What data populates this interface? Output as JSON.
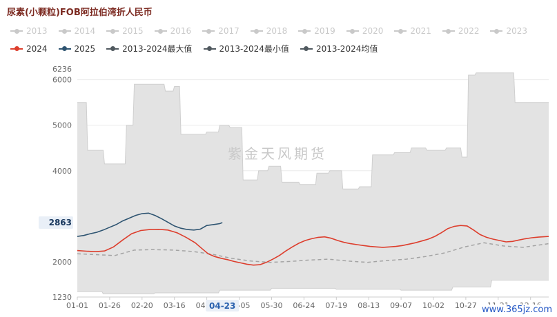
{
  "title": "尿素(小颗粒)FOB阿拉伯湾折人民币",
  "watermark": "紫金天风期货",
  "site_link": "www.365jz.com",
  "legend": {
    "disabled_color": "#c9c9c9",
    "disabled_years": [
      "2013",
      "2014",
      "2015",
      "2016",
      "2017",
      "2018",
      "2019",
      "2020",
      "2021",
      "2022",
      "2023"
    ],
    "active": [
      {
        "label": "2024",
        "color": "#dd3e2d"
      },
      {
        "label": "2025",
        "color": "#2e5471"
      },
      {
        "label": "2013-2024最大值",
        "color": "#50595f"
      },
      {
        "label": "2013-2024最小值",
        "color": "#50595f"
      },
      {
        "label": "2013-2024均值",
        "color": "#50595f"
      }
    ]
  },
  "axis_pointer": {
    "x_label": "04-23",
    "x_day": 113,
    "y_label": "2863",
    "y_value": 2863
  },
  "chart_data": {
    "type": "line",
    "title": "尿素(小颗粒)FOB阿拉伯湾折人民币",
    "legend_position": "top",
    "ylim": [
      1230,
      6236
    ],
    "band_fill": "#e3e3e3",
    "band_edge_color": "#cfcfcf",
    "gridlines": [
      2000,
      3000,
      4000,
      5000,
      6000
    ],
    "y_ticks": [
      {
        "value": 1230,
        "label": "1230"
      },
      {
        "value": 2000,
        "label": "2000"
      },
      {
        "value": 4000,
        "label": "4000"
      },
      {
        "value": 5000,
        "label": "5000"
      },
      {
        "value": 6000,
        "label": "6000"
      },
      {
        "value": 6236,
        "label": "6236"
      }
    ],
    "x_ticks": [
      {
        "day": 1,
        "label": "01-01"
      },
      {
        "day": 26,
        "label": "01-26"
      },
      {
        "day": 51,
        "label": "02-20"
      },
      {
        "day": 76,
        "label": "03-16"
      },
      {
        "day": 101,
        "label": "04-10"
      },
      {
        "day": 126,
        "label": "05-05"
      },
      {
        "day": 151,
        "label": "05-30"
      },
      {
        "day": 176,
        "label": "06-24"
      },
      {
        "day": 201,
        "label": "07-19"
      },
      {
        "day": 226,
        "label": "08-13"
      },
      {
        "day": 251,
        "label": "09-07"
      },
      {
        "day": 276,
        "label": "10-02"
      },
      {
        "day": 301,
        "label": "10-27"
      },
      {
        "day": 326,
        "label": "11-21"
      },
      {
        "day": 351,
        "label": "12-16"
      }
    ],
    "series": [
      {
        "name": "2013-2024最大值",
        "role": "max",
        "color": "#cfcfcf",
        "style": "solid",
        "points": [
          [
            1,
            5500
          ],
          [
            8,
            5500
          ],
          [
            9,
            4450
          ],
          [
            21,
            4450
          ],
          [
            22,
            4150
          ],
          [
            38,
            4150
          ],
          [
            39,
            5000
          ],
          [
            44,
            5000
          ],
          [
            45,
            5900
          ],
          [
            68,
            5900
          ],
          [
            69,
            5750
          ],
          [
            75,
            5750
          ],
          [
            76,
            5850
          ],
          [
            80,
            5850
          ],
          [
            81,
            4800
          ],
          [
            100,
            4800
          ],
          [
            101,
            4850
          ],
          [
            110,
            4850
          ],
          [
            111,
            5000
          ],
          [
            118,
            5000
          ],
          [
            119,
            4950
          ],
          [
            128,
            4950
          ],
          [
            129,
            3800
          ],
          [
            140,
            3800
          ],
          [
            141,
            4000
          ],
          [
            148,
            4000
          ],
          [
            149,
            4100
          ],
          [
            158,
            4100
          ],
          [
            159,
            3750
          ],
          [
            172,
            3750
          ],
          [
            173,
            3700
          ],
          [
            185,
            3700
          ],
          [
            186,
            3950
          ],
          [
            195,
            3950
          ],
          [
            196,
            4000
          ],
          [
            205,
            4000
          ],
          [
            206,
            3600
          ],
          [
            218,
            3600
          ],
          [
            219,
            3650
          ],
          [
            228,
            3650
          ],
          [
            229,
            4350
          ],
          [
            245,
            4350
          ],
          [
            246,
            4400
          ],
          [
            258,
            4400
          ],
          [
            259,
            4500
          ],
          [
            270,
            4500
          ],
          [
            271,
            4450
          ],
          [
            285,
            4450
          ],
          [
            286,
            4500
          ],
          [
            297,
            4500
          ],
          [
            298,
            4300
          ],
          [
            302,
            4300
          ],
          [
            303,
            6100
          ],
          [
            308,
            6100
          ],
          [
            309,
            6150
          ],
          [
            338,
            6150
          ],
          [
            339,
            5500
          ],
          [
            365,
            5500
          ]
        ]
      },
      {
        "name": "2013-2024最小值",
        "role": "min",
        "color": "#cfcfcf",
        "style": "solid",
        "points": [
          [
            1,
            1350
          ],
          [
            20,
            1350
          ],
          [
            21,
            1300
          ],
          [
            60,
            1300
          ],
          [
            61,
            1320
          ],
          [
            110,
            1320
          ],
          [
            111,
            1380
          ],
          [
            150,
            1380
          ],
          [
            151,
            1420
          ],
          [
            200,
            1420
          ],
          [
            201,
            1400
          ],
          [
            250,
            1400
          ],
          [
            251,
            1380
          ],
          [
            290,
            1380
          ],
          [
            291,
            1450
          ],
          [
            320,
            1450
          ],
          [
            321,
            1600
          ],
          [
            365,
            1600
          ]
        ]
      },
      {
        "name": "2013-2024均值",
        "role": "mean",
        "color": "#a3a3a3",
        "style": "dashed",
        "points": [
          [
            1,
            2180
          ],
          [
            15,
            2160
          ],
          [
            30,
            2140
          ],
          [
            45,
            2260
          ],
          [
            60,
            2270
          ],
          [
            75,
            2260
          ],
          [
            90,
            2230
          ],
          [
            105,
            2170
          ],
          [
            120,
            2080
          ],
          [
            135,
            2020
          ],
          [
            150,
            1990
          ],
          [
            165,
            2010
          ],
          [
            180,
            2040
          ],
          [
            195,
            2060
          ],
          [
            210,
            2020
          ],
          [
            225,
            1990
          ],
          [
            240,
            2030
          ],
          [
            255,
            2060
          ],
          [
            270,
            2120
          ],
          [
            285,
            2200
          ],
          [
            300,
            2330
          ],
          [
            315,
            2420
          ],
          [
            330,
            2350
          ],
          [
            345,
            2320
          ],
          [
            365,
            2400
          ]
        ]
      },
      {
        "name": "2024",
        "role": "year",
        "color": "#dd3e2d",
        "style": "solid",
        "points": [
          [
            1,
            2250
          ],
          [
            8,
            2235
          ],
          [
            15,
            2225
          ],
          [
            22,
            2240
          ],
          [
            29,
            2330
          ],
          [
            36,
            2480
          ],
          [
            43,
            2620
          ],
          [
            50,
            2690
          ],
          [
            57,
            2710
          ],
          [
            64,
            2715
          ],
          [
            71,
            2700
          ],
          [
            78,
            2640
          ],
          [
            85,
            2540
          ],
          [
            92,
            2420
          ],
          [
            97,
            2300
          ],
          [
            102,
            2180
          ],
          [
            107,
            2120
          ],
          [
            112,
            2080
          ],
          [
            117,
            2050
          ],
          [
            122,
            2010
          ],
          [
            127,
            1980
          ],
          [
            132,
            1950
          ],
          [
            137,
            1930
          ],
          [
            142,
            1940
          ],
          [
            147,
            1990
          ],
          [
            152,
            2060
          ],
          [
            157,
            2140
          ],
          [
            162,
            2240
          ],
          [
            167,
            2330
          ],
          [
            172,
            2410
          ],
          [
            177,
            2470
          ],
          [
            182,
            2510
          ],
          [
            187,
            2540
          ],
          [
            192,
            2550
          ],
          [
            197,
            2520
          ],
          [
            202,
            2470
          ],
          [
            207,
            2430
          ],
          [
            212,
            2400
          ],
          [
            217,
            2380
          ],
          [
            222,
            2360
          ],
          [
            227,
            2340
          ],
          [
            232,
            2330
          ],
          [
            237,
            2320
          ],
          [
            242,
            2330
          ],
          [
            247,
            2340
          ],
          [
            252,
            2360
          ],
          [
            257,
            2390
          ],
          [
            262,
            2420
          ],
          [
            267,
            2460
          ],
          [
            272,
            2500
          ],
          [
            277,
            2560
          ],
          [
            282,
            2640
          ],
          [
            287,
            2730
          ],
          [
            292,
            2780
          ],
          [
            297,
            2800
          ],
          [
            302,
            2790
          ],
          [
            307,
            2700
          ],
          [
            312,
            2600
          ],
          [
            317,
            2540
          ],
          [
            322,
            2500
          ],
          [
            327,
            2470
          ],
          [
            332,
            2440
          ],
          [
            337,
            2450
          ],
          [
            342,
            2480
          ],
          [
            347,
            2510
          ],
          [
            352,
            2530
          ],
          [
            357,
            2545
          ],
          [
            362,
            2555
          ],
          [
            365,
            2560
          ]
        ]
      },
      {
        "name": "2025",
        "role": "year",
        "color": "#2e5471",
        "style": "solid",
        "points": [
          [
            1,
            2560
          ],
          [
            6,
            2580
          ],
          [
            11,
            2620
          ],
          [
            16,
            2650
          ],
          [
            21,
            2700
          ],
          [
            26,
            2760
          ],
          [
            31,
            2820
          ],
          [
            36,
            2900
          ],
          [
            41,
            2960
          ],
          [
            46,
            3020
          ],
          [
            51,
            3060
          ],
          [
            56,
            3070
          ],
          [
            61,
            3020
          ],
          [
            66,
            2950
          ],
          [
            71,
            2870
          ],
          [
            76,
            2790
          ],
          [
            81,
            2740
          ],
          [
            86,
            2710
          ],
          [
            91,
            2700
          ],
          [
            96,
            2720
          ],
          [
            101,
            2800
          ],
          [
            106,
            2820
          ],
          [
            111,
            2840
          ],
          [
            113,
            2863
          ]
        ]
      }
    ]
  }
}
